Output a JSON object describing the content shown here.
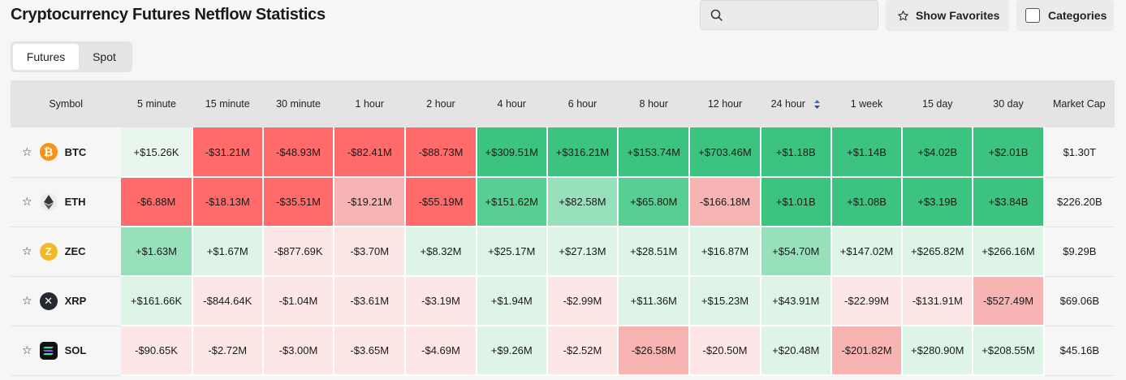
{
  "page_title": "Cryptocurrency Futures Netflow Statistics",
  "search": {
    "placeholder": "",
    "value": ""
  },
  "favorites_button": {
    "label": "Show Favorites",
    "icon": "star-outline-icon"
  },
  "categories_button": {
    "label": "Categories",
    "checked": false
  },
  "tabs": [
    {
      "label": "Futures",
      "active": true
    },
    {
      "label": "Spot",
      "active": false
    }
  ],
  "table": {
    "columns": [
      "Symbol",
      "5 minute",
      "15 minute",
      "30 minute",
      "1 hour",
      "2 hour",
      "4 hour",
      "6 hour",
      "8 hour",
      "12 hour",
      "24 hour",
      "1 week",
      "15 day",
      "30 day",
      "Market Cap"
    ],
    "sorted_column": "24 hour",
    "rows": [
      {
        "symbol": "BTC",
        "icon": "bitcoin-icon",
        "values": [
          "+$15.26K",
          "-$31.21M",
          "-$48.93M",
          "-$82.41M",
          "-$88.73M",
          "+$309.51M",
          "+$316.21M",
          "+$153.74M",
          "+$703.46M",
          "+$1.18B",
          "+$1.14B",
          "+$4.02B",
          "+$2.01B"
        ],
        "market_cap": "$1.30T"
      },
      {
        "symbol": "ETH",
        "icon": "ethereum-icon",
        "values": [
          "-$6.88M",
          "-$18.13M",
          "-$35.51M",
          "-$19.21M",
          "-$55.19M",
          "+$151.62M",
          "+$82.58M",
          "+$65.80M",
          "-$166.18M",
          "+$1.01B",
          "+$1.08B",
          "+$3.19B",
          "+$3.84B"
        ],
        "market_cap": "$226.20B"
      },
      {
        "symbol": "ZEC",
        "icon": "zcash-icon",
        "values": [
          "+$1.63M",
          "+$1.67M",
          "-$877.69K",
          "-$3.70M",
          "+$8.32M",
          "+$25.17M",
          "+$27.13M",
          "+$28.51M",
          "+$16.87M",
          "+$54.70M",
          "+$147.02M",
          "+$265.82M",
          "+$266.16M"
        ],
        "market_cap": "$9.29B"
      },
      {
        "symbol": "XRP",
        "icon": "xrp-icon",
        "values": [
          "+$161.66K",
          "-$844.64K",
          "-$1.04M",
          "-$3.61M",
          "-$3.19M",
          "+$1.94M",
          "-$2.99M",
          "+$11.36M",
          "+$15.23M",
          "+$43.91M",
          "-$22.99M",
          "-$131.91M",
          "-$527.49M"
        ],
        "market_cap": "$69.06B"
      },
      {
        "symbol": "SOL",
        "icon": "solana-icon",
        "values": [
          "-$90.65K",
          "-$2.72M",
          "-$3.00M",
          "-$3.65M",
          "-$4.69M",
          "+$9.26M",
          "-$2.52M",
          "-$26.58M",
          "-$20.50M",
          "+$20.48M",
          "-$201.82M",
          "+$280.90M",
          "+$208.55M"
        ],
        "market_cap": "$45.16B"
      }
    ]
  },
  "colors": {
    "red_strong": "#ff6b6b",
    "red_medium": "#f8b3b3",
    "red_light": "#fce6e6",
    "green_strong": "#3cc37f",
    "green_medium": "#57cf93",
    "green_soft": "#98e0bb",
    "green_light": "#ddf4e7",
    "green_pale": "#e9f6ee"
  }
}
